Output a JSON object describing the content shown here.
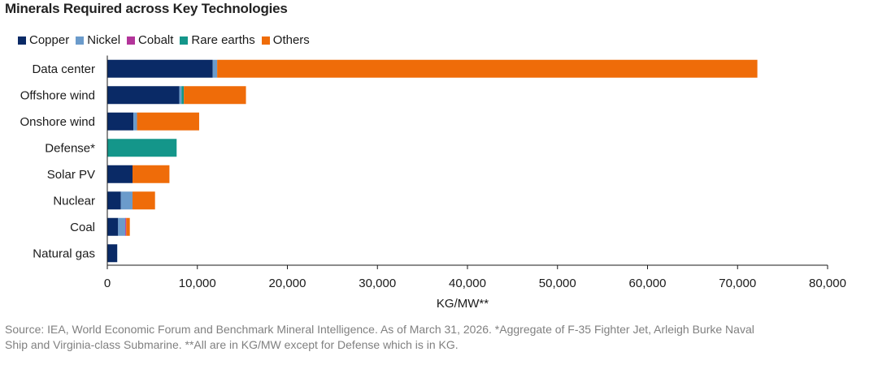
{
  "title": "Minerals Required across Key Technologies",
  "colors": {
    "Copper": "#0a2a66",
    "Nickel": "#6b9bcb",
    "Cobalt": "#b3359a",
    "Rare earths": "#14968a",
    "Others": "#ef6c09"
  },
  "chart_data": {
    "type": "bar",
    "orientation": "horizontal",
    "stacked": true,
    "title": "Minerals Required across Key Technologies",
    "xlabel": "KG/MW**",
    "ylabel": "",
    "xlim": [
      0,
      80000
    ],
    "xticks": [
      0,
      10000,
      20000,
      30000,
      40000,
      50000,
      60000,
      70000,
      80000
    ],
    "xtick_labels": [
      "0",
      "10,000",
      "20,000",
      "30,000",
      "40,000",
      "50,000",
      "60,000",
      "70,000",
      "80,000"
    ],
    "categories": [
      "Data center",
      "Offshore wind",
      "Onshore wind",
      "Defense*",
      "Solar PV",
      "Nuclear",
      "Coal",
      "Natural gas"
    ],
    "series": [
      {
        "name": "Copper",
        "values": [
          11700,
          8000,
          2900,
          0,
          2800,
          1500,
          1200,
          1100
        ]
      },
      {
        "name": "Nickel",
        "values": [
          500,
          240,
          400,
          0,
          0,
          1300,
          800,
          20
        ]
      },
      {
        "name": "Cobalt",
        "values": [
          0,
          0,
          0,
          0,
          0,
          0,
          100,
          0
        ]
      },
      {
        "name": "Rare earths",
        "values": [
          0,
          260,
          0,
          7700,
          0,
          0,
          0,
          0
        ]
      },
      {
        "name": "Others",
        "values": [
          60000,
          6900,
          6900,
          0,
          4100,
          2500,
          400,
          0
        ]
      }
    ],
    "legend": [
      "Copper",
      "Nickel",
      "Cobalt",
      "Rare earths",
      "Others"
    ],
    "legend_position": "top-left",
    "grid": false
  },
  "footnote": {
    "line1": "Source: IEA, World Economic Forum and Benchmark Mineral Intelligence. As of March 31, 2026. *Aggregate of F-35 Fighter Jet, Arleigh Burke Naval",
    "line2": "Ship and Virginia-class Submarine. **All are in KG/MW except for Defense which is in KG."
  }
}
